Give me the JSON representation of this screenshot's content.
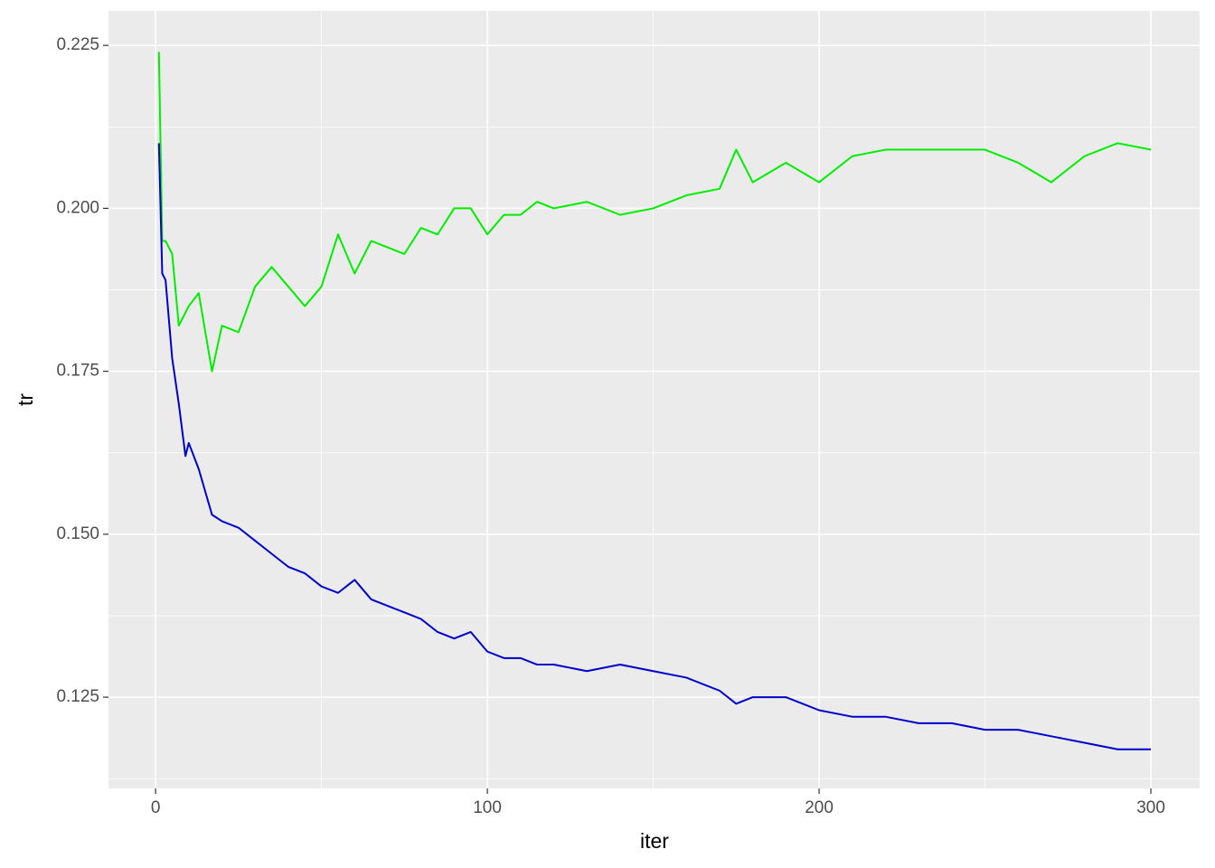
{
  "chart_data": {
    "type": "line",
    "x_label": "iter",
    "y_label": "tr",
    "x": [
      1,
      2,
      3,
      5,
      7,
      9,
      10,
      13,
      17,
      20,
      25,
      30,
      35,
      40,
      45,
      50,
      55,
      60,
      65,
      70,
      75,
      80,
      85,
      90,
      95,
      100,
      105,
      110,
      115,
      120,
      130,
      140,
      150,
      160,
      170,
      175,
      180,
      190,
      200,
      210,
      220,
      230,
      240,
      250,
      260,
      270,
      280,
      290,
      300
    ],
    "series": [
      {
        "color": "#00ee00",
        "values": [
          0.224,
          0.195,
          0.195,
          0.193,
          0.182,
          0.184,
          0.185,
          0.187,
          0.175,
          0.182,
          0.181,
          0.188,
          0.191,
          0.188,
          0.185,
          0.188,
          0.196,
          0.19,
          0.195,
          0.194,
          0.193,
          0.197,
          0.196,
          0.2,
          0.2,
          0.196,
          0.199,
          0.199,
          0.201,
          0.2,
          0.201,
          0.199,
          0.2,
          0.202,
          0.203,
          0.209,
          0.204,
          0.207,
          0.204,
          0.208,
          0.209,
          0.209,
          0.209,
          0.209,
          0.207,
          0.204,
          0.208,
          0.21,
          0.209
        ]
      },
      {
        "color": "#0000cd",
        "values": [
          0.21,
          0.19,
          0.189,
          0.177,
          0.17,
          0.162,
          0.164,
          0.16,
          0.153,
          0.152,
          0.151,
          0.149,
          0.147,
          0.145,
          0.144,
          0.142,
          0.141,
          0.143,
          0.14,
          0.139,
          0.138,
          0.137,
          0.135,
          0.134,
          0.135,
          0.132,
          0.131,
          0.131,
          0.13,
          0.13,
          0.129,
          0.13,
          0.129,
          0.128,
          0.126,
          0.124,
          0.125,
          0.125,
          0.123,
          0.122,
          0.122,
          0.121,
          0.121,
          0.12,
          0.12,
          0.119,
          0.118,
          0.117,
          0.117
        ]
      }
    ],
    "xlim": [
      -14.2,
      314.7
    ],
    "ylim": [
      0.111,
      0.2303
    ],
    "xticks": [
      0,
      100,
      200,
      300
    ],
    "yticks": [
      0.125,
      {
        "value": 0.15,
        "label": "0.150"
      },
      0.175,
      {
        "value": 0.2,
        "label": "0.200"
      },
      0.225
    ],
    "grid": true
  }
}
